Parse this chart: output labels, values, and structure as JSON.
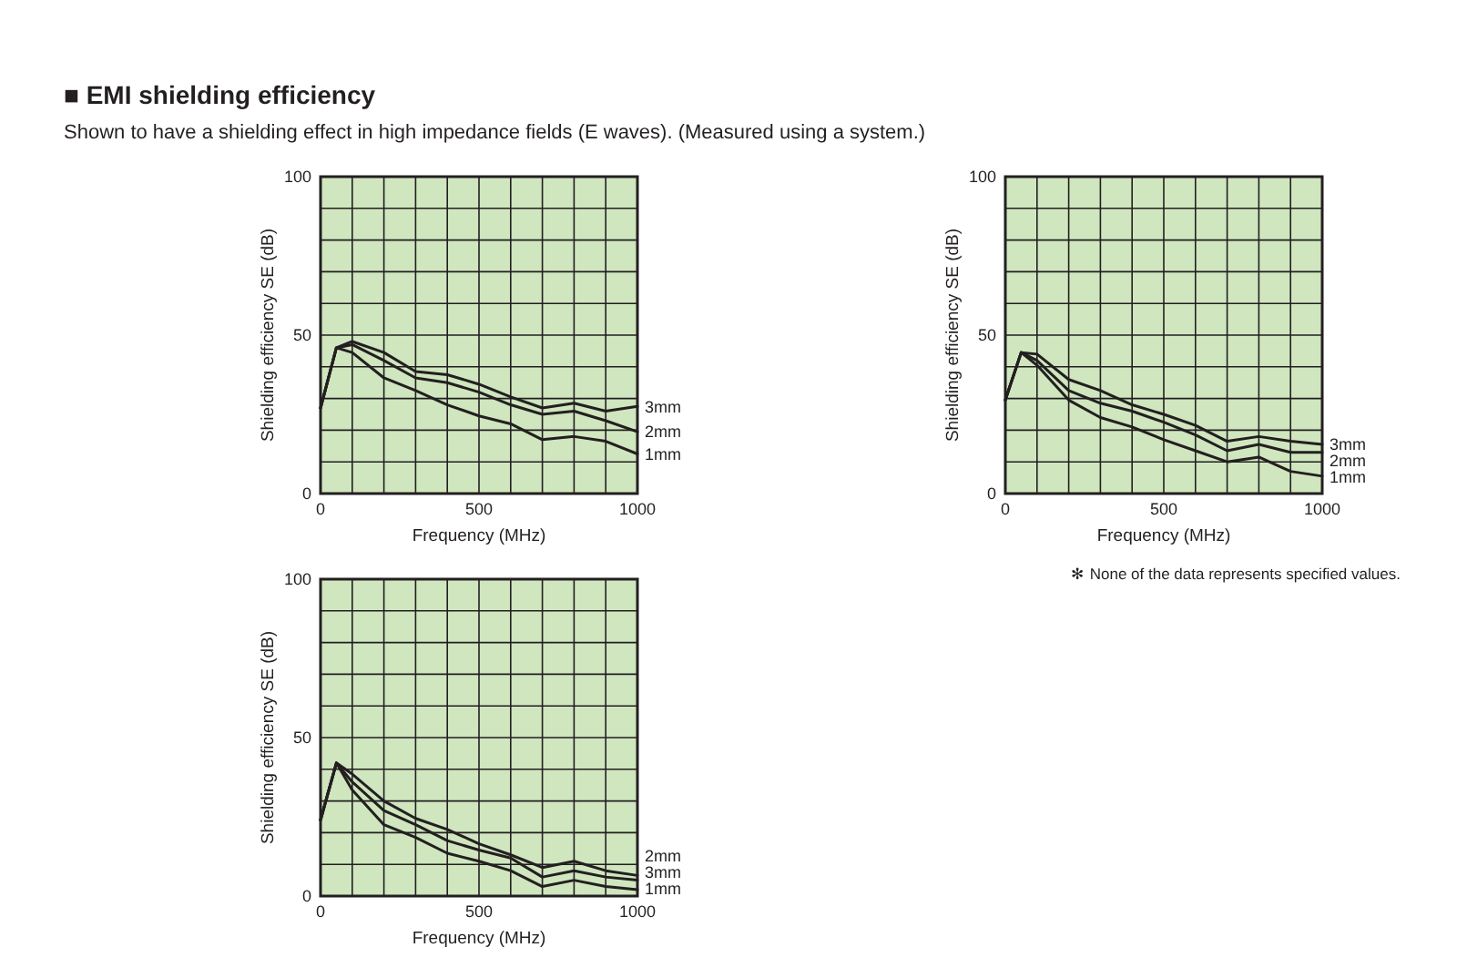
{
  "chart_data": [
    {
      "type": "line",
      "title": "■ EMI shielding efficiency",
      "subtitle": "Shown to have a shielding effect in high impedance fields (E waves). (Measured using a system.)",
      "xlabel": "Frequency (MHz)",
      "ylabel": "Shielding efficiency SE (dB)",
      "x": [
        0,
        50,
        100,
        200,
        300,
        400,
        500,
        600,
        700,
        800,
        900,
        1000
      ],
      "series": [
        {
          "name": "3mm",
          "color": "#231f20",
          "values": [
            27,
            46,
            48,
            44.5,
            38.5,
            37.5,
            34.5,
            30.5,
            27,
            28.5,
            26,
            27.5
          ]
        },
        {
          "name": "2mm",
          "color": "#231f20",
          "values": [
            27,
            46,
            47,
            42,
            36.5,
            35,
            32,
            28,
            25,
            26,
            23,
            19.5
          ]
        },
        {
          "name": "1mm",
          "color": "#231f20",
          "values": [
            27,
            46,
            44.5,
            36.5,
            32.5,
            28,
            24.5,
            22,
            17,
            18,
            16.5,
            12.5
          ]
        }
      ],
      "xlim": [
        0,
        1000
      ],
      "ylim": [
        0,
        100
      ],
      "xticks": [
        0,
        {
          "value": 100,
          "label": null
        },
        {
          "value": 200,
          "label": null
        },
        {
          "value": 300,
          "label": null
        },
        {
          "value": 400,
          "label": null
        },
        500,
        {
          "value": 600,
          "label": null
        },
        {
          "value": 700,
          "label": null
        },
        {
          "value": 800,
          "label": null
        },
        {
          "value": 900,
          "label": null
        },
        1000
      ],
      "yticks": [
        0,
        {
          "value": 10,
          "label": null
        },
        {
          "value": 20,
          "label": null
        },
        {
          "value": 30,
          "label": null
        },
        {
          "value": 40,
          "label": null
        },
        50,
        {
          "value": 60,
          "label": null
        },
        {
          "value": 70,
          "label": null
        },
        {
          "value": 80,
          "label": null
        },
        {
          "value": 90,
          "label": null
        },
        100
      ],
      "grid": true
    },
    {
      "type": "line",
      "xlabel": "Frequency (MHz)",
      "ylabel": "Shielding efficiency SE (dB)",
      "x": [
        0,
        50,
        100,
        200,
        300,
        400,
        500,
        600,
        700,
        800,
        900,
        1000
      ],
      "series": [
        {
          "name": "3mm",
          "color": "#231f20",
          "values": [
            29.5,
            44.5,
            44,
            36,
            32.5,
            28,
            25,
            21.5,
            16.5,
            18,
            16.5,
            15.5
          ]
        },
        {
          "name": "2mm",
          "color": "#231f20",
          "values": [
            29.5,
            44.5,
            42,
            32.5,
            28.5,
            26,
            22.5,
            18.5,
            13.5,
            15.5,
            13,
            13
          ]
        },
        {
          "name": "1mm",
          "color": "#231f20",
          "values": [
            29.5,
            44.5,
            40.5,
            29.5,
            24,
            21,
            17,
            13.5,
            10,
            11.5,
            7,
            5.5
          ]
        }
      ],
      "xlim": [
        0,
        1000
      ],
      "ylim": [
        0,
        100
      ],
      "xticks": [
        0,
        {
          "value": 100,
          "label": null
        },
        {
          "value": 200,
          "label": null
        },
        {
          "value": 300,
          "label": null
        },
        {
          "value": 400,
          "label": null
        },
        500,
        {
          "value": 600,
          "label": null
        },
        {
          "value": 700,
          "label": null
        },
        {
          "value": 800,
          "label": null
        },
        {
          "value": 900,
          "label": null
        },
        1000
      ],
      "yticks": [
        0,
        {
          "value": 10,
          "label": null
        },
        {
          "value": 20,
          "label": null
        },
        {
          "value": 30,
          "label": null
        },
        {
          "value": 40,
          "label": null
        },
        50,
        {
          "value": 60,
          "label": null
        },
        {
          "value": 70,
          "label": null
        },
        {
          "value": 80,
          "label": null
        },
        {
          "value": 90,
          "label": null
        },
        100
      ],
      "grid": true,
      "annotations": [
        "✻ None of the data represents specified values."
      ]
    },
    {
      "type": "line",
      "xlabel": "Frequency (MHz)",
      "ylabel": "Shielding efficiency SE (dB)",
      "x": [
        0,
        50,
        100,
        200,
        300,
        400,
        500,
        600,
        700,
        800,
        900,
        1000
      ],
      "series": [
        {
          "name": "2mm",
          "color": "#231f20",
          "values": [
            24,
            42,
            38.5,
            30,
            24.5,
            21,
            16.5,
            13,
            9,
            11,
            8,
            6.5
          ]
        },
        {
          "name": "3mm",
          "color": "#231f20",
          "values": [
            24,
            42,
            36,
            27,
            22.5,
            17.5,
            14.5,
            12,
            6,
            8,
            6,
            5
          ]
        },
        {
          "name": "1mm",
          "color": "#231f20",
          "values": [
            24,
            42,
            33.5,
            22.5,
            18.5,
            13.5,
            11,
            8,
            3,
            5,
            3,
            2
          ]
        }
      ],
      "xlim": [
        0,
        1000
      ],
      "ylim": [
        0,
        100
      ],
      "xticks": [
        0,
        {
          "value": 100,
          "label": null
        },
        {
          "value": 200,
          "label": null
        },
        {
          "value": 300,
          "label": null
        },
        {
          "value": 400,
          "label": null
        },
        500,
        {
          "value": 600,
          "label": null
        },
        {
          "value": 700,
          "label": null
        },
        {
          "value": 800,
          "label": null
        },
        {
          "value": 900,
          "label": null
        },
        1000
      ],
      "yticks": [
        0,
        {
          "value": 10,
          "label": null
        },
        {
          "value": 20,
          "label": null
        },
        {
          "value": 30,
          "label": null
        },
        {
          "value": 40,
          "label": null
        },
        50,
        {
          "value": 60,
          "label": null
        },
        {
          "value": 70,
          "label": null
        },
        {
          "value": 80,
          "label": null
        },
        {
          "value": 90,
          "label": null
        },
        100
      ],
      "grid": true
    }
  ]
}
